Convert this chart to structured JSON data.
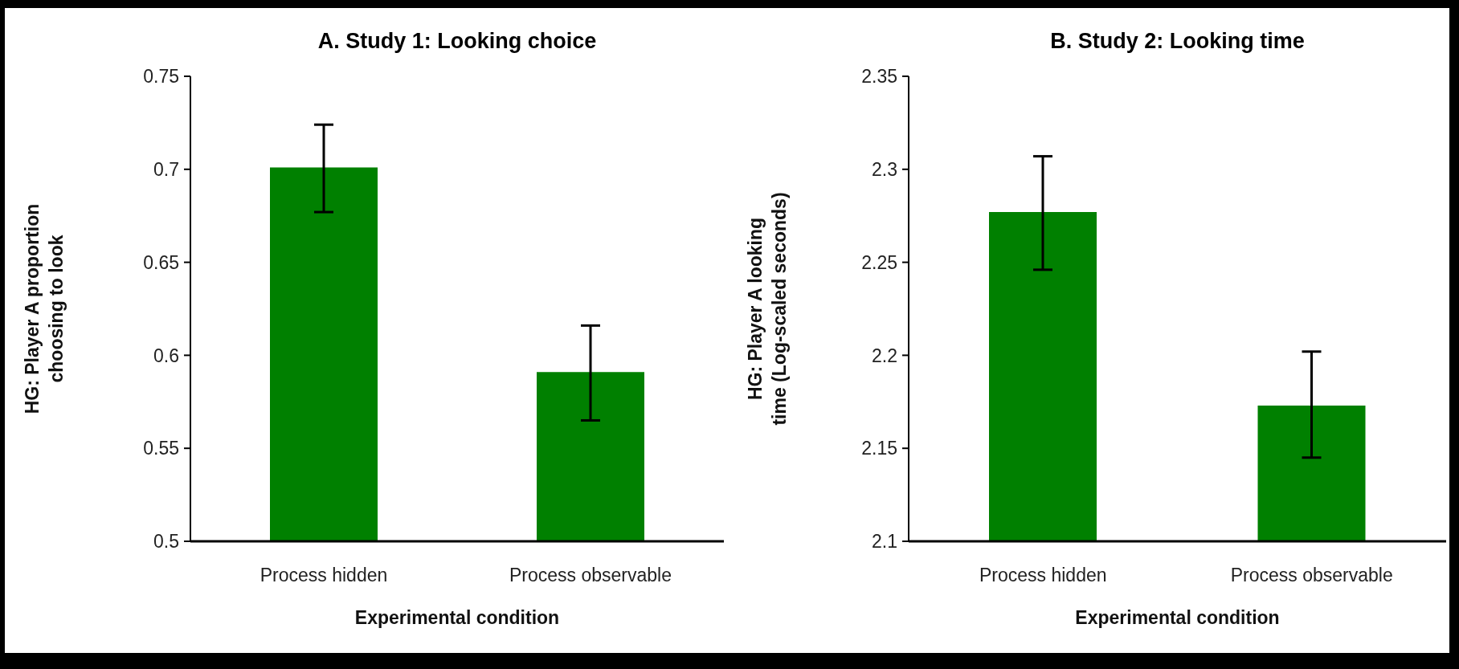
{
  "chart_data": [
    {
      "type": "bar",
      "title": "A. Study 1: Looking choice",
      "xlabel": "Experimental condition",
      "ylabel": "HG: Player A proportion choosing to look",
      "categories": [
        "Process hidden",
        "Process observable"
      ],
      "values": [
        0.701,
        0.591
      ],
      "errors": [
        [
          0.677,
          0.724
        ],
        [
          0.565,
          0.616
        ]
      ],
      "color": "#008000",
      "ylim": [
        0.5,
        0.75
      ],
      "yticks": [
        0.5,
        0.55,
        0.6,
        0.65,
        0.7,
        0.75
      ]
    },
    {
      "type": "bar",
      "title": "B. Study 2: Looking time",
      "xlabel": "Experimental condition",
      "ylabel": "HG: Player A looking  time (Log-scaled seconds)",
      "categories": [
        "Process hidden",
        "Process observable"
      ],
      "values": [
        2.277,
        2.173
      ],
      "errors": [
        [
          2.246,
          2.307
        ],
        [
          2.145,
          2.202
        ]
      ],
      "color": "#008000",
      "ylim": [
        2.1,
        2.35
      ],
      "yticks": [
        2.1,
        2.15,
        2.2,
        2.25,
        2.3,
        2.35
      ]
    }
  ]
}
